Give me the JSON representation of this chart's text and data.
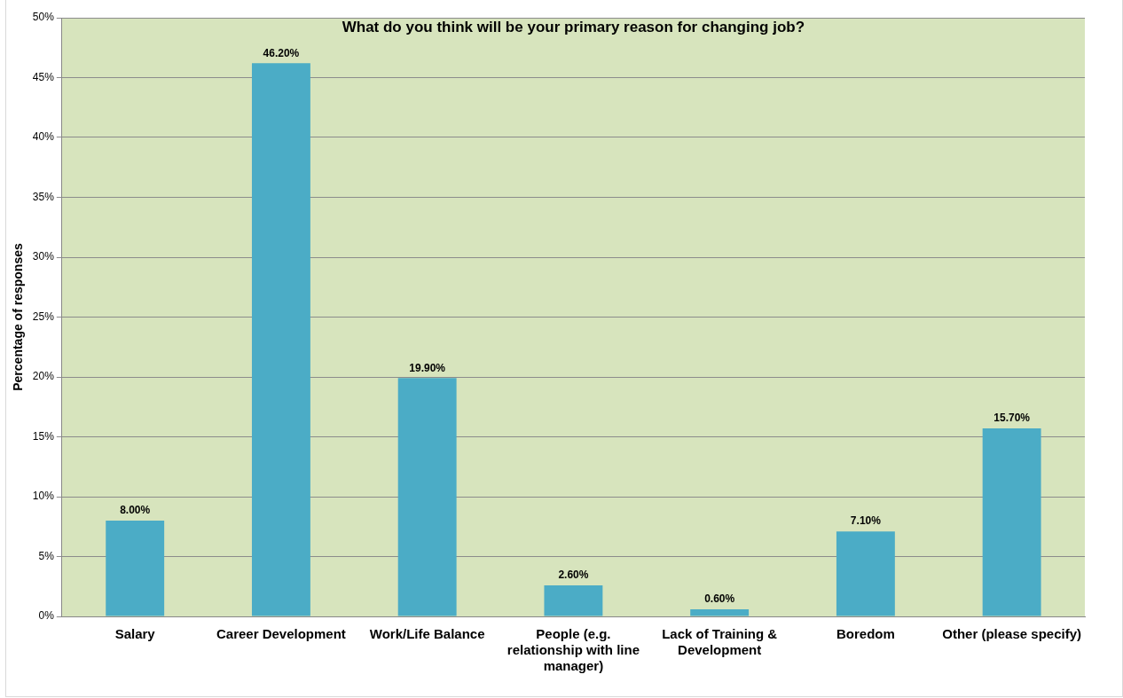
{
  "chart_data": {
    "type": "bar",
    "title": "What do you think will be your primary reason for changing job?",
    "ylabel": "Percentage of responses",
    "categories": [
      "Salary",
      "Career Development",
      "Work/Life Balance",
      "People (e.g. relationship with line manager)",
      "Lack of Training & Development",
      "Boredom",
      "Other (please specify)"
    ],
    "values": [
      8.0,
      46.2,
      19.9,
      2.6,
      0.6,
      7.1,
      15.7
    ],
    "value_labels": [
      "8.00%",
      "46.20%",
      "19.90%",
      "2.60%",
      "0.60%",
      "7.10%",
      "15.70%"
    ],
    "color": "#4bacc6",
    "ylim": [
      0,
      50
    ],
    "yticks": [
      {
        "value": 0,
        "label": "0%"
      },
      {
        "value": 5,
        "label": "5%"
      },
      {
        "value": 10,
        "label": "10%"
      },
      {
        "value": 15,
        "label": "15%"
      },
      {
        "value": 20,
        "label": "20%"
      },
      {
        "value": 25,
        "label": "25%"
      },
      {
        "value": 30,
        "label": "30%"
      },
      {
        "value": 35,
        "label": "35%"
      },
      {
        "value": 40,
        "label": "40%"
      },
      {
        "value": 45,
        "label": "45%"
      },
      {
        "value": 50,
        "label": "50%"
      }
    ],
    "grid": "y",
    "legend": false
  }
}
